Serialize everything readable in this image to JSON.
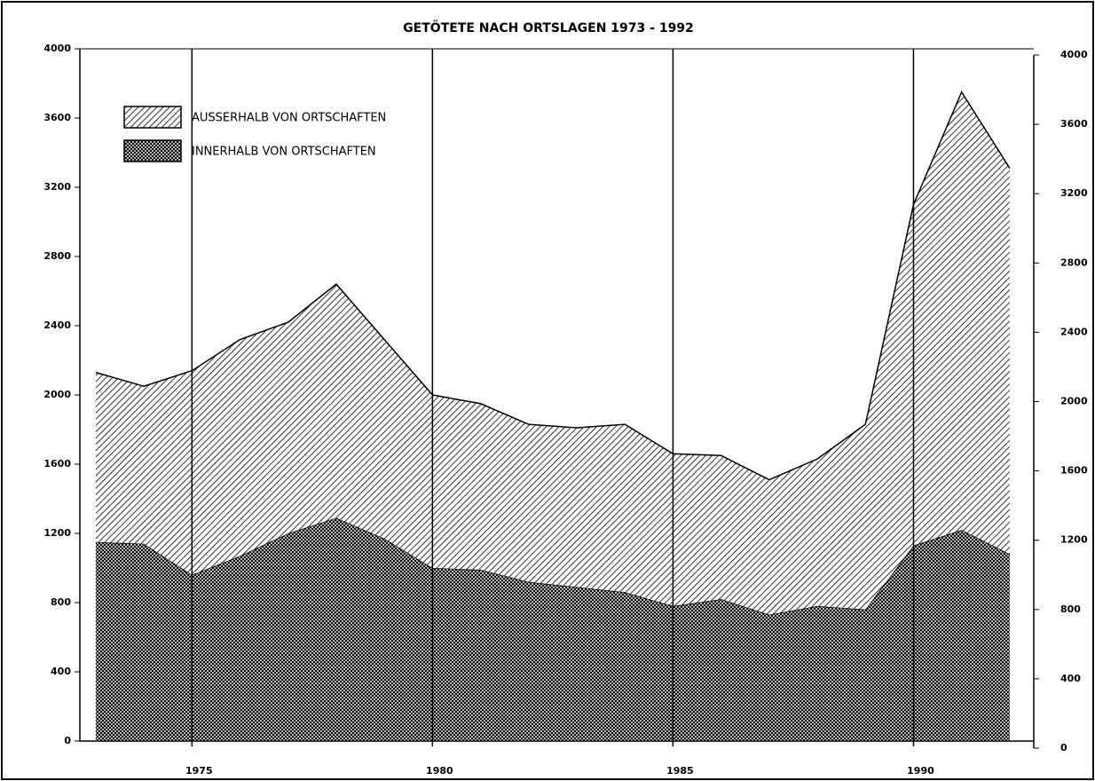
{
  "chart_data": {
    "type": "stacked_area",
    "title": "GETÖTETE NACH ORTSLAGEN 1973 - 1992",
    "x": [
      1973,
      1974,
      1975,
      1976,
      1977,
      1978,
      1979,
      1980,
      1981,
      1982,
      1983,
      1984,
      1985,
      1986,
      1987,
      1988,
      1989,
      1990,
      1991,
      1992
    ],
    "series": [
      {
        "name": "INNERHALB VON ORTSCHAFTEN",
        "color": "#000000",
        "pattern": "crosshatch",
        "values": [
          1150,
          1140,
          960,
          1070,
          1200,
          1290,
          1170,
          1000,
          990,
          920,
          890,
          860,
          780,
          820,
          730,
          780,
          760,
          1130,
          1220,
          1080
        ]
      },
      {
        "name": "AUSSERHALB VON ORTSCHAFTEN",
        "color": "#000000",
        "pattern": "diagonal",
        "values": [
          980,
          910,
          1180,
          1250,
          1220,
          1350,
          1150,
          1000,
          960,
          910,
          920,
          970,
          880,
          830,
          780,
          850,
          1070,
          1970,
          2530,
          2230
        ]
      }
    ],
    "xlim": [
      1972.67,
      1992.5
    ],
    "xticks": [
      1975,
      1980,
      1985,
      1990
    ],
    "ylim": [
      0,
      4000
    ],
    "yticks": [
      0,
      400,
      800,
      1200,
      1600,
      2000,
      2400,
      2800,
      3200,
      3600,
      4000
    ],
    "y2lim": [
      0,
      4000
    ],
    "y2ticks": [
      0,
      400,
      800,
      1200,
      1600,
      2000,
      2400,
      2800,
      3200,
      3600,
      4000
    ],
    "grid": true,
    "legend": "upper left"
  }
}
